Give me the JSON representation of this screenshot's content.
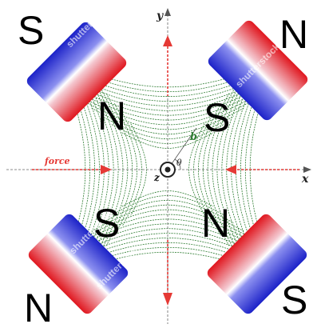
{
  "axes": {
    "x_label": "x",
    "y_label": "y",
    "z_label": "z",
    "angle_label": "θ",
    "field_label": "b",
    "force_label": "force"
  },
  "poles": [
    {
      "id": "outer-top-left",
      "label": "S"
    },
    {
      "id": "outer-top-right",
      "label": "N"
    },
    {
      "id": "outer-bottom-left",
      "label": "N"
    },
    {
      "id": "outer-bottom-right",
      "label": "S"
    },
    {
      "id": "inner-top-left",
      "label": "N"
    },
    {
      "id": "inner-top-right",
      "label": "S"
    },
    {
      "id": "inner-bottom-left",
      "label": "S"
    },
    {
      "id": "inner-bottom-right",
      "label": "N"
    }
  ],
  "watermark": "shutterstock",
  "colors": {
    "magnet_red": "#e0161e",
    "magnet_blue": "#1c22c8",
    "field_lines": "#2e7d32",
    "force_arrows": "#e53935",
    "axis": "#555555"
  }
}
